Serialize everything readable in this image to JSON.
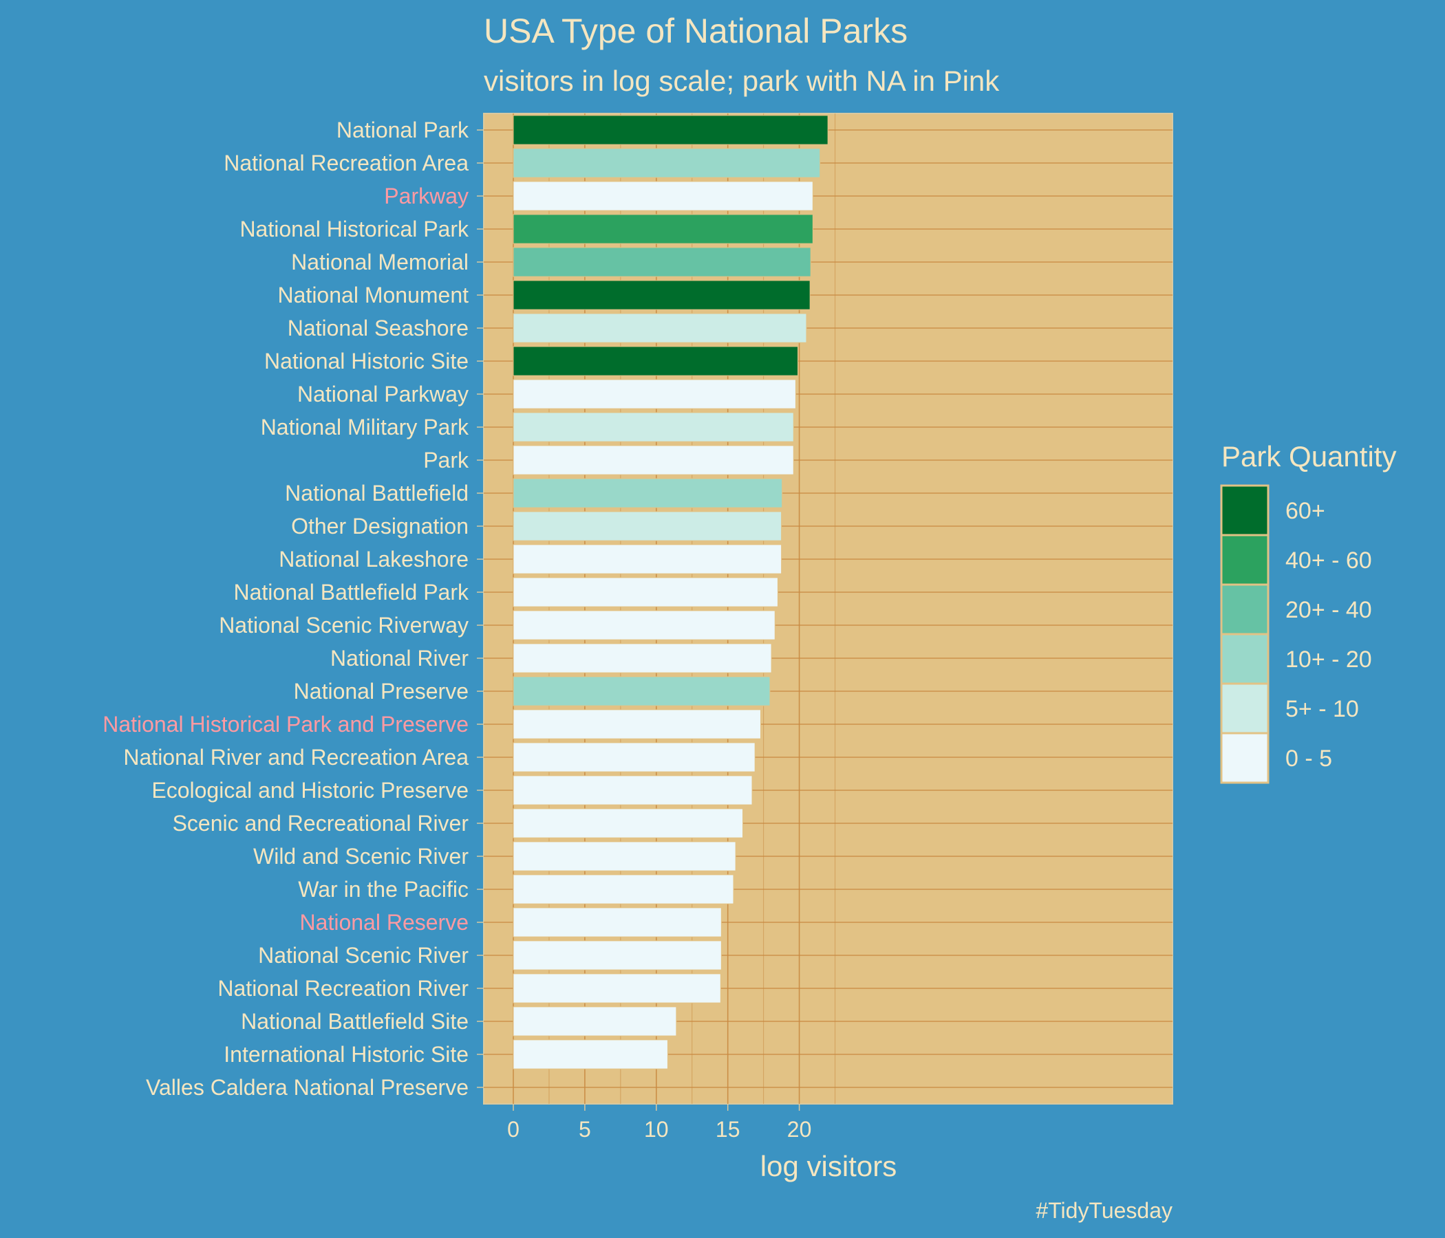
{
  "chart_data": {
    "type": "bar",
    "orientation": "horizontal",
    "title": "USA Type of National Parks",
    "subtitle": "visitors in log scale; park with NA in Pink",
    "xlabel": "log visitors",
    "ylabel": "",
    "xlim": [
      0,
      23
    ],
    "xticks": [
      0,
      5,
      10,
      15,
      20
    ],
    "caption": "#TidyTuesday",
    "legend": {
      "title": "Park Quantity",
      "position": "right",
      "entries": [
        {
          "label": "60+",
          "color": "#006d2c"
        },
        {
          "label": "40+ - 60",
          "color": "#2ca25f"
        },
        {
          "label": "20+ - 40",
          "color": "#66c2a4"
        },
        {
          "label": "10+ - 20",
          "color": "#99d8c9"
        },
        {
          "label": "5+ - 10",
          "color": "#ccece6"
        },
        {
          "label": "0 - 5",
          "color": "#edf8fb"
        }
      ]
    },
    "na_label_color": "#ff9aa2",
    "bars": [
      {
        "category": "National Park",
        "value": 22.0,
        "quantity": "60+",
        "na": false
      },
      {
        "category": "National Recreation Area",
        "value": 21.45,
        "quantity": "10+ - 20",
        "na": false
      },
      {
        "category": "Parkway",
        "value": 20.95,
        "quantity": "0 - 5",
        "na": true
      },
      {
        "category": "National Historical Park",
        "value": 20.95,
        "quantity": "40+ - 60",
        "na": false
      },
      {
        "category": "National Memorial",
        "value": 20.8,
        "quantity": "20+ - 40",
        "na": false
      },
      {
        "category": "National Monument",
        "value": 20.75,
        "quantity": "60+",
        "na": false
      },
      {
        "category": "National Seashore",
        "value": 20.5,
        "quantity": "5+ - 10",
        "na": false
      },
      {
        "category": "National Historic Site",
        "value": 19.9,
        "quantity": "60+",
        "na": false
      },
      {
        "category": "National Parkway",
        "value": 19.75,
        "quantity": "0 - 5",
        "na": false
      },
      {
        "category": "National Military Park",
        "value": 19.6,
        "quantity": "5+ - 10",
        "na": false
      },
      {
        "category": "Park",
        "value": 19.6,
        "quantity": "0 - 5",
        "na": false
      },
      {
        "category": "National Battlefield",
        "value": 18.8,
        "quantity": "10+ - 20",
        "na": false
      },
      {
        "category": "Other Designation",
        "value": 18.75,
        "quantity": "5+ - 10",
        "na": false
      },
      {
        "category": "National Lakeshore",
        "value": 18.75,
        "quantity": "0 - 5",
        "na": false
      },
      {
        "category": "National Battlefield Park",
        "value": 18.5,
        "quantity": "0 - 5",
        "na": false
      },
      {
        "category": "National Scenic Riverway",
        "value": 18.3,
        "quantity": "0 - 5",
        "na": false
      },
      {
        "category": "National River",
        "value": 18.05,
        "quantity": "0 - 5",
        "na": false
      },
      {
        "category": "National Preserve",
        "value": 17.95,
        "quantity": "10+ - 20",
        "na": false
      },
      {
        "category": "National Historical Park and Preserve",
        "value": 17.3,
        "quantity": "0 - 5",
        "na": true
      },
      {
        "category": "National River and Recreation Area",
        "value": 16.9,
        "quantity": "0 - 5",
        "na": false
      },
      {
        "category": "Ecological and Historic Preserve",
        "value": 16.7,
        "quantity": "0 - 5",
        "na": false
      },
      {
        "category": "Scenic and Recreational River",
        "value": 16.05,
        "quantity": "0 - 5",
        "na": false
      },
      {
        "category": "Wild and Scenic River",
        "value": 15.55,
        "quantity": "0 - 5",
        "na": false
      },
      {
        "category": "War in the Pacific",
        "value": 15.4,
        "quantity": "0 - 5",
        "na": false
      },
      {
        "category": "National Reserve",
        "value": 14.55,
        "quantity": "0 - 5",
        "na": true
      },
      {
        "category": "National Scenic River",
        "value": 14.55,
        "quantity": "0 - 5",
        "na": false
      },
      {
        "category": "National Recreation River",
        "value": 14.5,
        "quantity": "0 - 5",
        "na": false
      },
      {
        "category": "National Battlefield Site",
        "value": 11.4,
        "quantity": "0 - 5",
        "na": false
      },
      {
        "category": "International Historic Site",
        "value": 10.8,
        "quantity": "0 - 5",
        "na": false
      },
      {
        "category": "Valles Caldera National Preserve",
        "value": 0,
        "quantity": "0 - 5",
        "na": false
      }
    ],
    "colors": {
      "page_background": "#3b93c2",
      "panel_background": "#e2c285",
      "grid_line": "#c98a42",
      "text": "#f5e6c0"
    }
  }
}
